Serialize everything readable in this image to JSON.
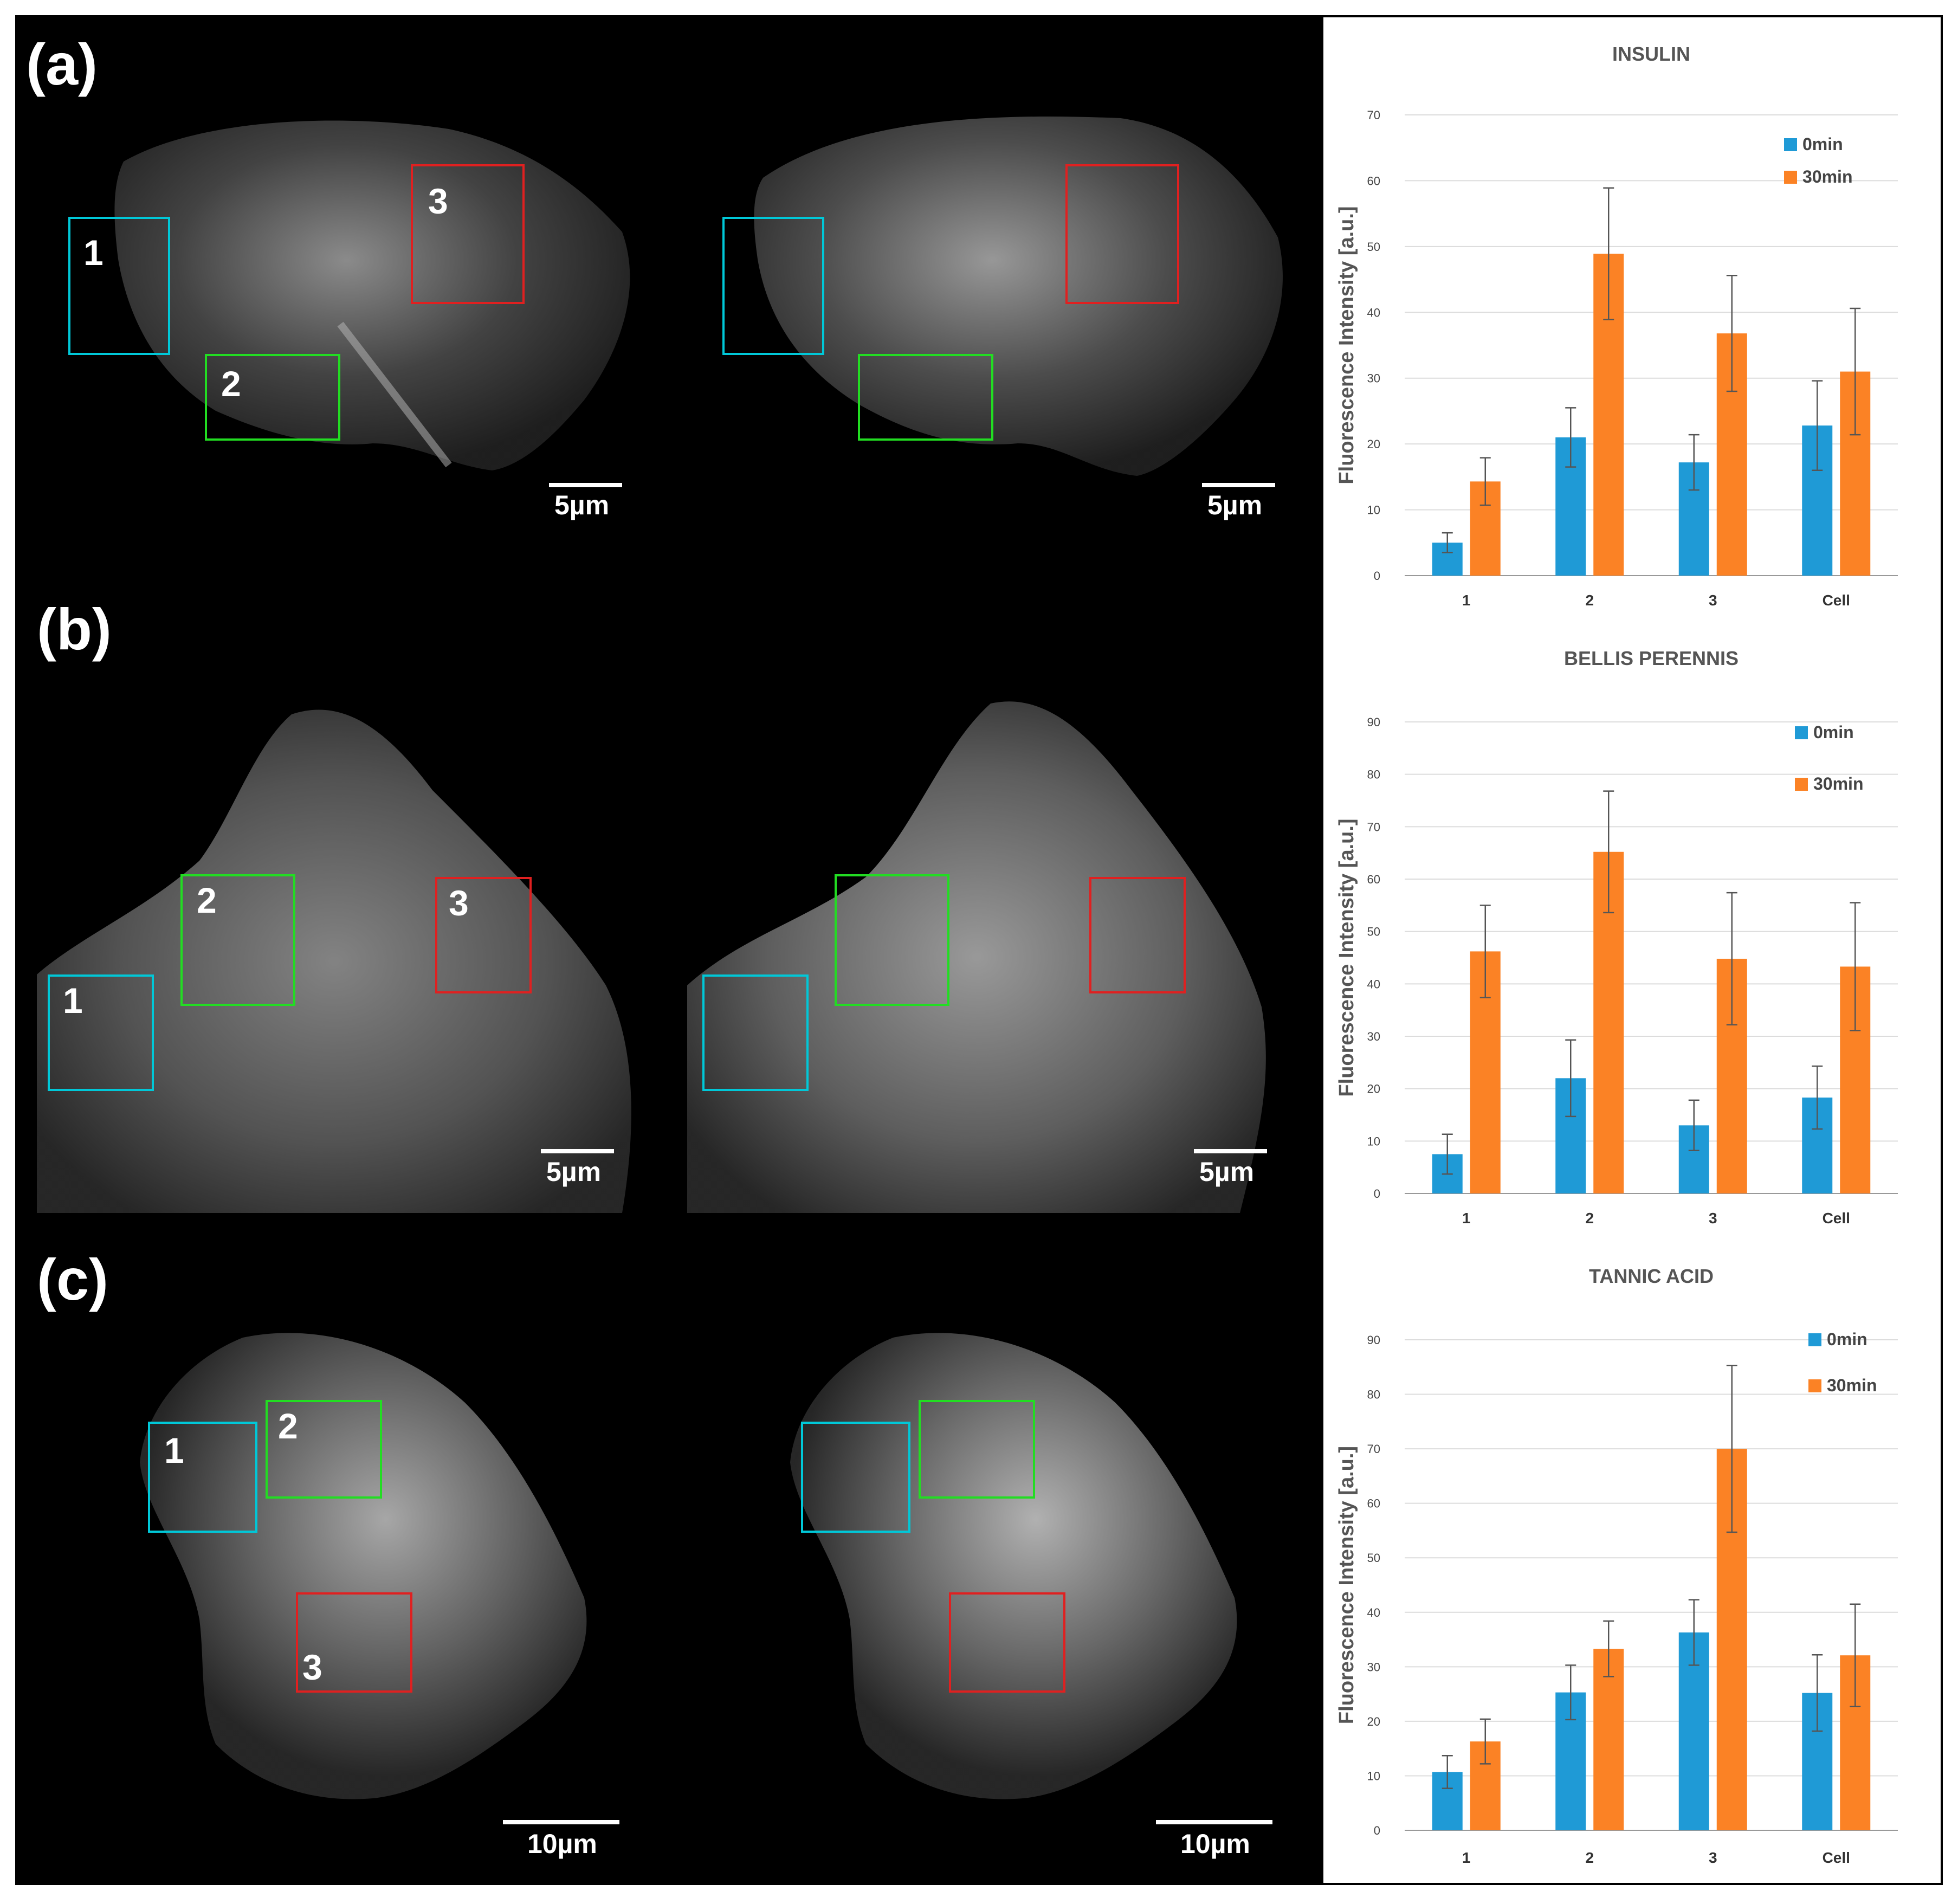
{
  "rows": [
    {
      "label": "(a)",
      "scale_label": "5µm",
      "rois": [
        {
          "num": "1",
          "color": "#00c8d8"
        },
        {
          "num": "2",
          "color": "#22dd22"
        },
        {
          "num": "3",
          "color": "#e02020"
        }
      ]
    },
    {
      "label": "(b)",
      "scale_label": "5µm",
      "rois": [
        {
          "num": "1",
          "color": "#00c8d8"
        },
        {
          "num": "2",
          "color": "#22dd22"
        },
        {
          "num": "3",
          "color": "#e02020"
        }
      ]
    },
    {
      "label": "(c)",
      "scale_label": "10µm",
      "rois": [
        {
          "num": "1",
          "color": "#00c8d8"
        },
        {
          "num": "2",
          "color": "#22dd22"
        },
        {
          "num": "3",
          "color": "#e02020"
        }
      ]
    }
  ],
  "chart_data": [
    {
      "type": "bar",
      "title": "INSULIN",
      "ylabel": "Fluorescence Intensity [a.u.]",
      "xlabel": "",
      "categories": [
        "1",
        "2",
        "3",
        "Cell"
      ],
      "ylim": [
        0,
        70
      ],
      "yticks": [
        0,
        10,
        20,
        30,
        40,
        50,
        60,
        70
      ],
      "grid": true,
      "legend_position": "top-right",
      "series": [
        {
          "name": "0min",
          "color": "#1f9ad6",
          "values": [
            5,
            21,
            17.2,
            22.8
          ],
          "errors": [
            1.5,
            4.5,
            4.2,
            6.8
          ]
        },
        {
          "name": "30min",
          "color": "#fb8225",
          "values": [
            14.3,
            48.9,
            36.8,
            31
          ],
          "errors": [
            3.6,
            10,
            8.8,
            9.6
          ]
        }
      ]
    },
    {
      "type": "bar",
      "title": "BELLIS PERENNIS",
      "ylabel": "Fluorescence Intensity [a.u.]",
      "xlabel": "",
      "categories": [
        "1",
        "2",
        "3",
        "Cell"
      ],
      "ylim": [
        0,
        90
      ],
      "yticks": [
        0,
        10,
        20,
        30,
        40,
        50,
        60,
        70,
        80,
        90
      ],
      "grid": true,
      "legend_position": "top-right",
      "series": [
        {
          "name": "0min",
          "color": "#1f9ad6",
          "values": [
            7.5,
            22,
            13,
            18.3
          ],
          "errors": [
            3.8,
            7.3,
            4.8,
            6
          ]
        },
        {
          "name": "30min",
          "color": "#fb8225",
          "values": [
            46.2,
            65.2,
            44.8,
            43.3
          ],
          "errors": [
            8.8,
            11.6,
            12.6,
            12.2
          ]
        }
      ]
    },
    {
      "type": "bar",
      "title": "TANNIC ACID",
      "ylabel": "Fluorescence Intensity [a.u.]",
      "xlabel": "",
      "categories": [
        "1",
        "2",
        "3",
        "Cell"
      ],
      "ylim": [
        0,
        90
      ],
      "yticks": [
        0,
        10,
        20,
        30,
        40,
        50,
        60,
        70,
        80,
        90
      ],
      "grid": true,
      "legend_position": "top-right",
      "series": [
        {
          "name": "0min",
          "color": "#1f9ad6",
          "values": [
            10.7,
            25.3,
            36.3,
            25.2
          ],
          "errors": [
            3,
            5,
            6,
            7
          ]
        },
        {
          "name": "30min",
          "color": "#fb8225",
          "values": [
            16.3,
            33.3,
            70,
            32.1
          ],
          "errors": [
            4.1,
            5.1,
            15.3,
            9.4
          ]
        }
      ]
    }
  ]
}
